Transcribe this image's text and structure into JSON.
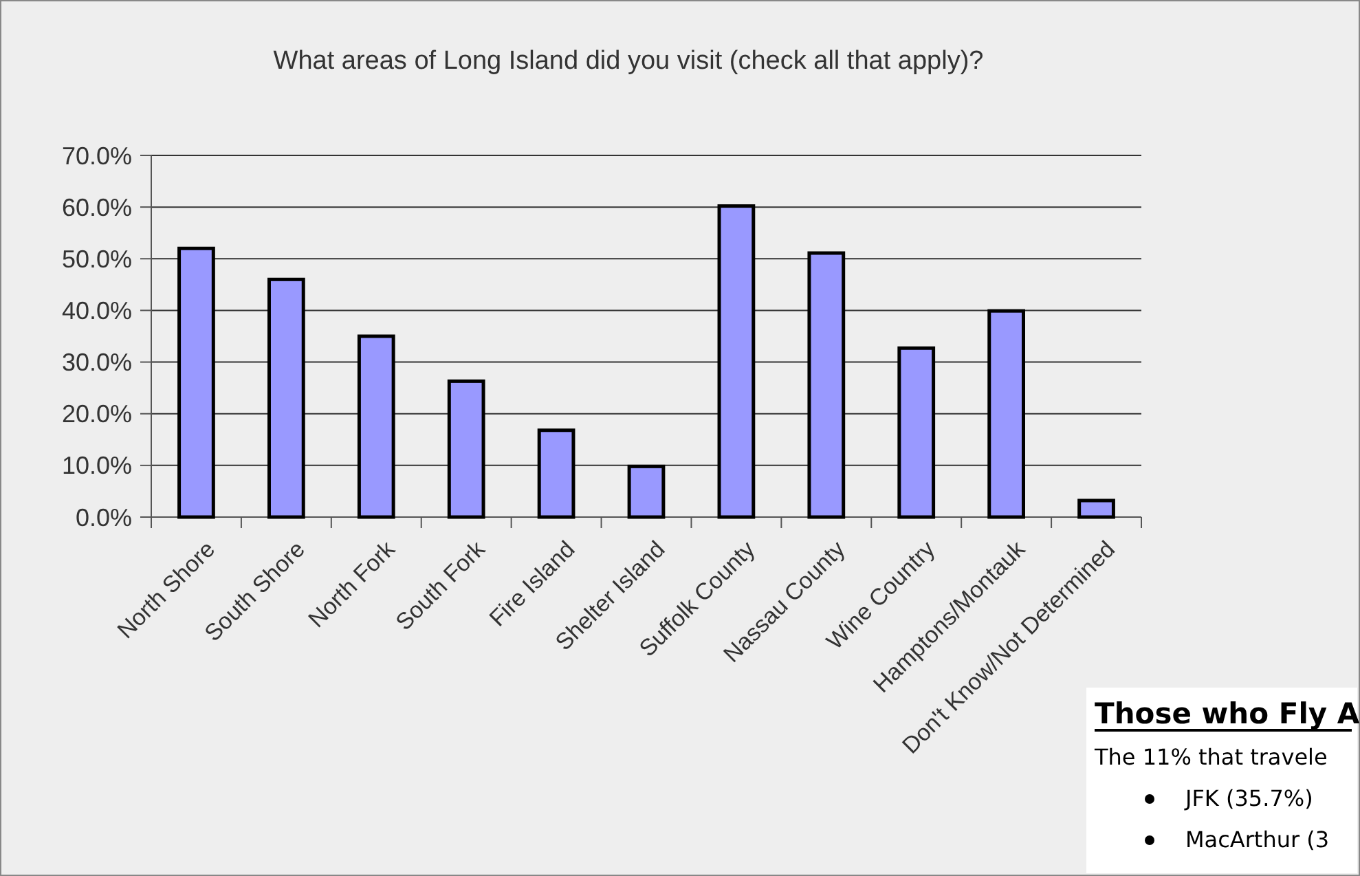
{
  "chart_data": {
    "type": "bar",
    "title": "What areas of Long Island did you visit (check all that apply)?",
    "categories": [
      "North Shore",
      "South Shore",
      "North Fork",
      "South Fork",
      "Fire Island",
      "Shelter Island",
      "Suffolk County",
      "Nassau County",
      "Wine Country",
      "Hamptons/Montauk",
      "Don't Know/Not Determined"
    ],
    "values": [
      52,
      46,
      35,
      26.3,
      16.8,
      9.8,
      60.2,
      51.1,
      32.7,
      39.9,
      3.2
    ],
    "color": "#9999ff",
    "ylim": [
      0,
      70
    ],
    "yticks": [
      {
        "value": 0,
        "label": "0.0%"
      },
      {
        "value": 10,
        "label": "10.0%"
      },
      {
        "value": 20,
        "label": "20.0%"
      },
      {
        "value": 30,
        "label": "30.0%"
      },
      {
        "value": 40,
        "label": "40.0%"
      },
      {
        "value": 50,
        "label": "50.0%"
      },
      {
        "value": 60,
        "label": "60.0%"
      },
      {
        "value": 70,
        "label": "70.0%"
      }
    ],
    "grid": "y",
    "annotations": [
      "Those who Fly A",
      "The 11% that travele",
      "JFK (35.7%)",
      "MacArthur (3"
    ]
  }
}
